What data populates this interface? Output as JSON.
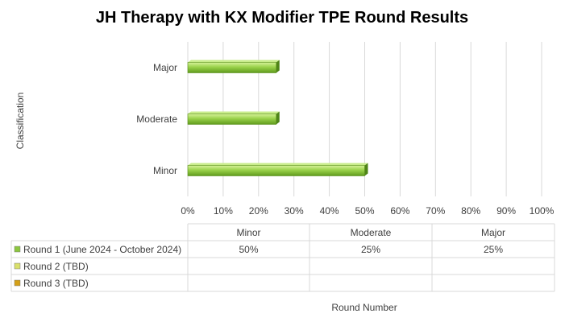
{
  "chart_data": {
    "type": "bar",
    "orientation": "horizontal",
    "title": "JH Therapy with KX Modifier TPE Round Results",
    "ylabel": "Classification",
    "xlabel": "Round Number",
    "categories": [
      "Minor",
      "Moderate",
      "Major"
    ],
    "x_ticks": [
      "0%",
      "10%",
      "20%",
      "30%",
      "40%",
      "50%",
      "60%",
      "70%",
      "80%",
      "90%",
      "100%"
    ],
    "xlim": [
      0,
      100
    ],
    "grid": true,
    "legend": "data-table-below",
    "series": [
      {
        "name": "Round 1 (June 2024 - October 2024)",
        "values": [
          50,
          25,
          25
        ],
        "labels": [
          "50%",
          "25%",
          "25%"
        ],
        "color": "#8cc63f"
      },
      {
        "name": "Round 2 (TBD)",
        "values": [
          null,
          null,
          null
        ],
        "labels": [
          "",
          "",
          ""
        ],
        "color": "#d9e06a"
      },
      {
        "name": "Round 3 (TBD)",
        "values": [
          null,
          null,
          null
        ],
        "labels": [
          "",
          "",
          ""
        ],
        "color": "#d4a017"
      }
    ]
  }
}
